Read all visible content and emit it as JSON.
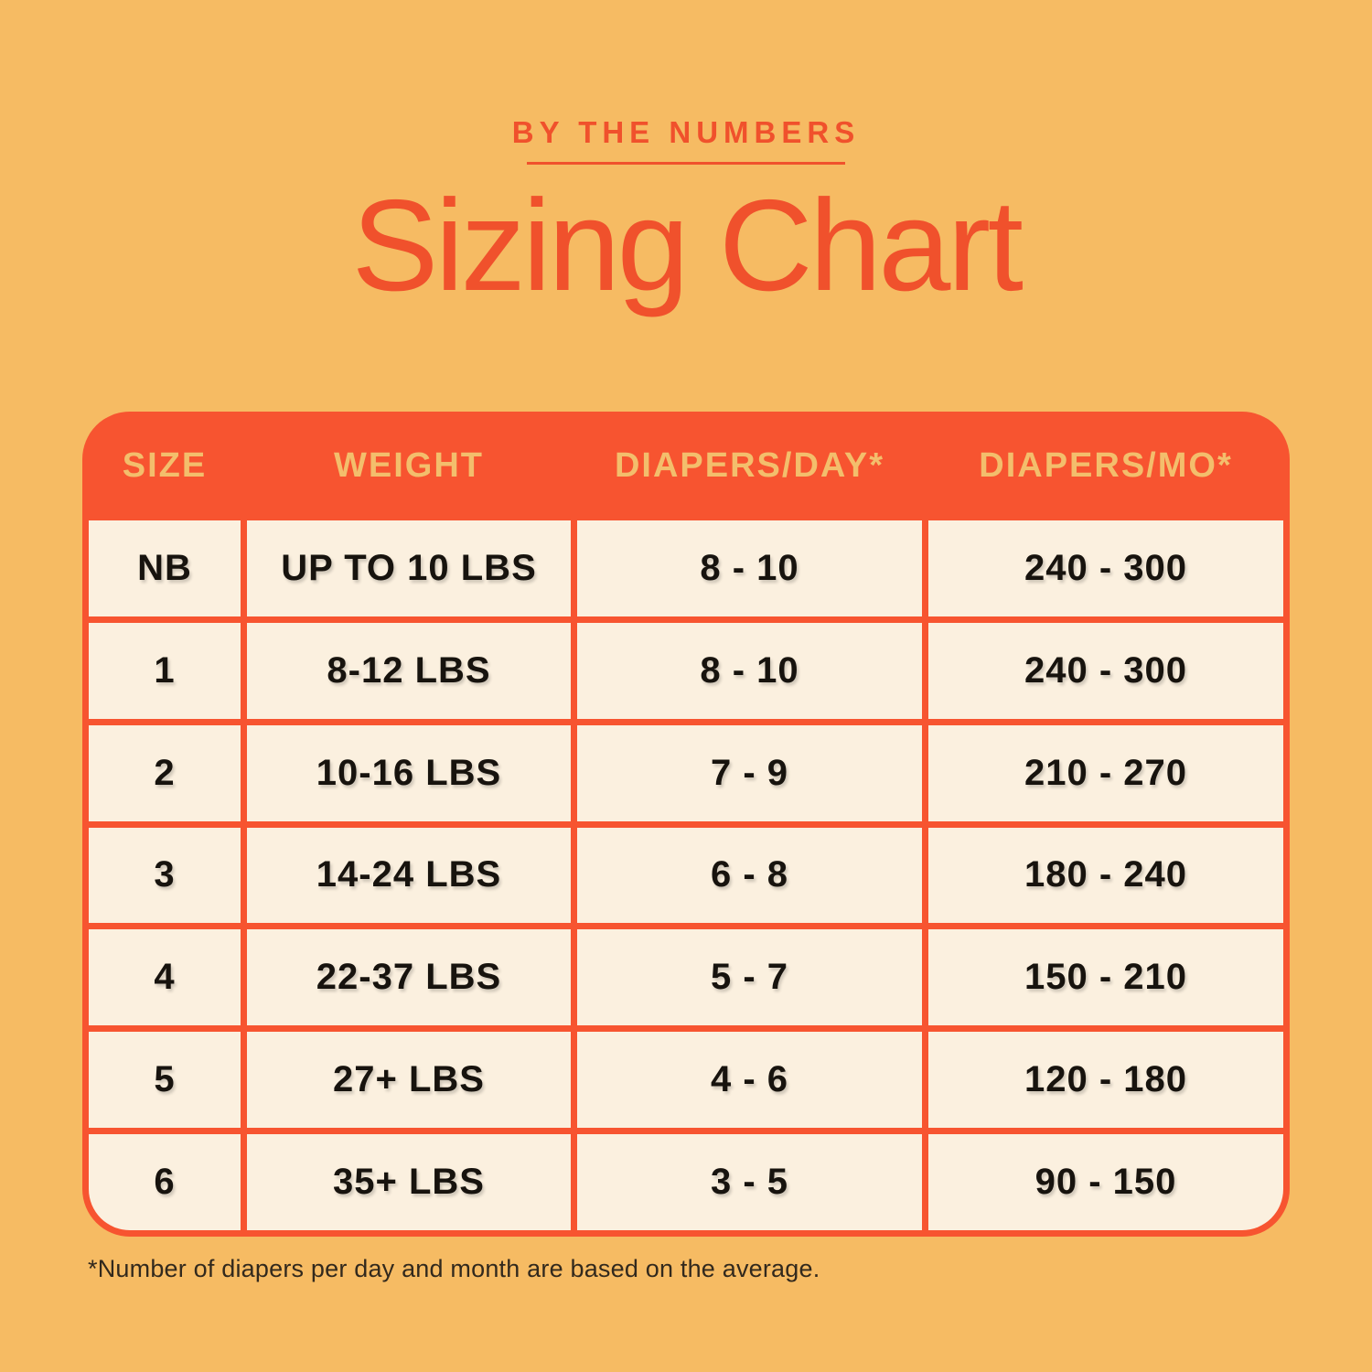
{
  "page": {
    "eyebrow": "BY THE NUMBERS",
    "title": "Sizing Chart",
    "footnote": "*Number of diapers per day and month are based on the average."
  },
  "colors": {
    "background": "#F6BB63",
    "accent": "#F0512C",
    "table_border": "#F75430",
    "header_bg": "#F75430",
    "header_text": "#F3BE6C",
    "cell_bg": "#FBF0DF",
    "cell_text": "#17130E",
    "footnote_text": "#32291D"
  },
  "chart_data": {
    "type": "table",
    "title": "Sizing Chart",
    "subtitle": "BY THE NUMBERS",
    "columns": [
      "SIZE",
      "WEIGHT",
      "DIAPERS/DAY*",
      "DIAPERS/MO*"
    ],
    "rows": [
      [
        "NB",
        "UP TO 10 LBS",
        "8 - 10",
        "240 - 300"
      ],
      [
        "1",
        "8-12 LBS",
        "8 - 10",
        "240 - 300"
      ],
      [
        "2",
        "10-16 LBS",
        "7 - 9",
        "210 - 270"
      ],
      [
        "3",
        "14-24 LBS",
        "6 - 8",
        "180 - 240"
      ],
      [
        "4",
        "22-37 LBS",
        "5 - 7",
        "150 - 210"
      ],
      [
        "5",
        "27+ LBS",
        "4 - 6",
        "120 - 180"
      ],
      [
        "6",
        "35+ LBS",
        "3 - 5",
        "90 - 150"
      ]
    ],
    "footnote": "*Number of diapers per day and month are based on the average.",
    "layout": {
      "header_position": "top",
      "grid": "on",
      "corner_style": "rounded"
    }
  }
}
